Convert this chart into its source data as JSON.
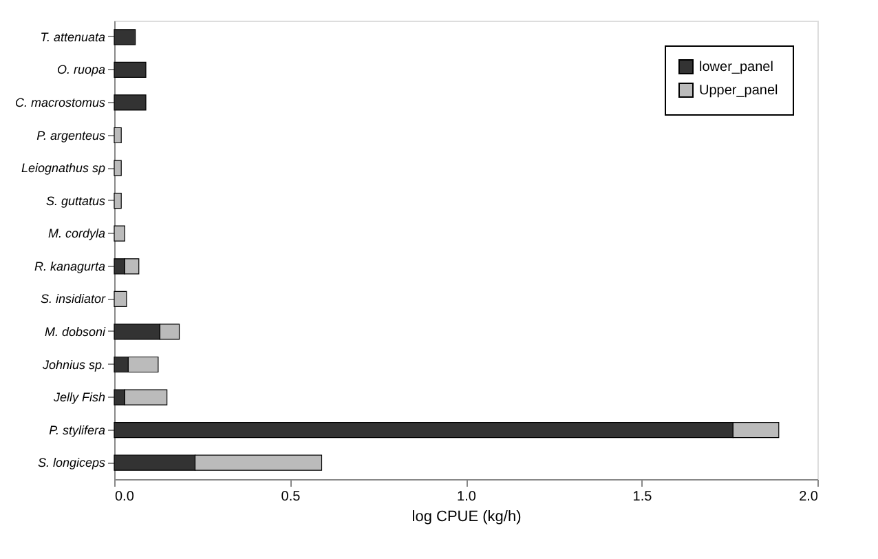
{
  "chart_data": {
    "type": "bar",
    "orientation": "horizontal",
    "stacked": true,
    "xlabel": "log CPUE (kg/h)",
    "categories": [
      "T. attenuata",
      "O. ruopa",
      "C. macrostomus",
      "P. argenteus",
      "Leiognathus sp",
      "S. guttatus",
      "M. cordyla",
      "R. kanagurta",
      "S. insidiator",
      "M. dobsoni",
      "Johnius sp.",
      "Jelly Fish",
      "P. stylifera",
      "S. longiceps"
    ],
    "series": [
      {
        "name": "lower_panel",
        "color": "#333333",
        "values": [
          0.06,
          0.09,
          0.09,
          0,
          0,
          0,
          0,
          0.03,
          0,
          0.13,
          0.04,
          0.03,
          1.76,
          0.23
        ]
      },
      {
        "name": "Upper_panel",
        "color": "#bbbbbb",
        "values": [
          0,
          0,
          0,
          0.02,
          0.02,
          0.02,
          0.03,
          0.04,
          0.035,
          0.055,
          0.085,
          0.12,
          0.13,
          0.36
        ]
      }
    ],
    "xlim": [
      0,
      2
    ],
    "xticks": [
      {
        "value": 0,
        "label": "0.0"
      },
      0.5,
      {
        "value": 1,
        "label": "1.0"
      },
      1.5,
      {
        "value": 2,
        "label": "2.0"
      }
    ],
    "grid": false,
    "legend": "top right"
  }
}
